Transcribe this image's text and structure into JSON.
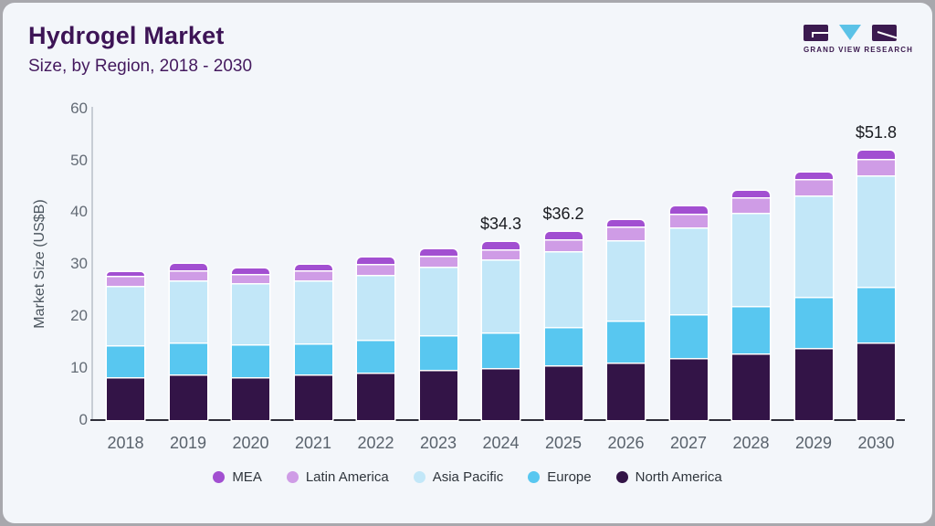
{
  "header": {
    "title": "Hydrogel Market",
    "subtitle": "Size, by Region, 2018 - 2030",
    "logo_text": "GRAND VIEW RESEARCH"
  },
  "colors": {
    "card_background": "#f3f6fa",
    "outer_border": "#a8a8ad",
    "title_text": "#3d1456",
    "axis_text": "#5d666f",
    "x_axis_line": "#2e2e39",
    "y_axis_line": "#c7cdd5"
  },
  "chart_data": {
    "type": "bar",
    "stacked": true,
    "title": "Hydrogel Market",
    "subtitle": "Size, by Region, 2018 - 2030",
    "xlabel": "",
    "ylabel": "Market Size (US$B)",
    "ylim": [
      0,
      60
    ],
    "yticks": [
      0,
      10,
      20,
      30,
      40,
      50,
      60
    ],
    "grid": false,
    "legend_position": "bottom",
    "categories": [
      "2018",
      "2019",
      "2020",
      "2021",
      "2022",
      "2023",
      "2024",
      "2025",
      "2026",
      "2027",
      "2028",
      "2029",
      "2030"
    ],
    "series": [
      {
        "name": "North America",
        "color": "#331447",
        "values": [
          8.2,
          8.7,
          8.3,
          8.8,
          9.1,
          9.6,
          10.0,
          10.5,
          11.1,
          11.9,
          12.9,
          13.8,
          15.0
        ]
      },
      {
        "name": "Europe",
        "color": "#58c7f0",
        "values": [
          6.2,
          6.2,
          6.3,
          6.0,
          6.4,
          6.7,
          6.9,
          7.4,
          8.1,
          8.5,
          9.1,
          10.0,
          10.7
        ]
      },
      {
        "name": "Asia Pacific",
        "color": "#c2e7f8",
        "values": [
          11.4,
          11.9,
          11.8,
          12.1,
          12.4,
          13.2,
          14.1,
          14.7,
          15.4,
          16.7,
          17.9,
          19.4,
          21.4
        ]
      },
      {
        "name": "Latin America",
        "color": "#cf9ce6",
        "values": [
          1.9,
          2.1,
          1.7,
          1.9,
          2.1,
          2.1,
          1.9,
          2.2,
          2.6,
          2.7,
          2.9,
          3.2,
          3.1
        ]
      },
      {
        "name": "MEA",
        "color": "#a24fd1",
        "values": [
          0.8,
          1.2,
          1.1,
          1.1,
          1.2,
          1.2,
          1.4,
          1.4,
          1.3,
          1.3,
          1.3,
          1.2,
          1.6
        ]
      }
    ],
    "totals": [
      28.5,
      30.1,
      29.2,
      29.9,
      31.2,
      32.8,
      34.3,
      36.2,
      38.5,
      41.1,
      44.1,
      47.6,
      51.8
    ],
    "annotations": [
      {
        "category": "2024",
        "text": "$34.3"
      },
      {
        "category": "2025",
        "text": "$36.2"
      },
      {
        "category": "2030",
        "text": "$51.8"
      }
    ],
    "legend_order": [
      "MEA",
      "Latin America",
      "Asia Pacific",
      "Europe",
      "North America"
    ]
  }
}
